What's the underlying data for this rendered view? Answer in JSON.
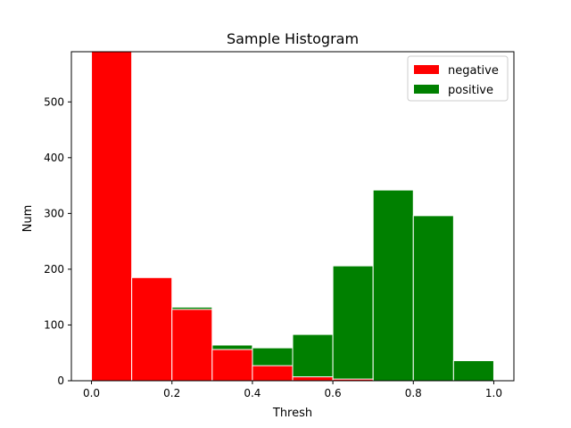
{
  "chart_data": {
    "type": "bar",
    "title": "Sample Histogram",
    "xlabel": "Thresh",
    "ylabel": "Num",
    "xlim": [
      -0.05,
      1.05
    ],
    "ylim": [
      0,
      590
    ],
    "xticks": [
      "0.0",
      "0.2",
      "0.4",
      "0.6",
      "0.8",
      "1.0"
    ],
    "yticks": [
      "0",
      "100",
      "200",
      "300",
      "400",
      "500"
    ],
    "grid": false,
    "legend_position": "top-right",
    "stacking": "overlay",
    "bin_edges": [
      0.0,
      0.1,
      0.2,
      0.3,
      0.4,
      0.5,
      0.6,
      0.7,
      0.8,
      0.9,
      1.0
    ],
    "series": [
      {
        "name": "positive",
        "color": "#008000",
        "values": [
          0,
          0,
          132,
          64,
          59,
          83,
          206,
          342,
          296,
          36
        ]
      },
      {
        "name": "negative",
        "color": "#ff0000",
        "values": [
          590,
          185,
          128,
          56,
          27,
          7,
          3,
          0,
          0,
          0
        ]
      }
    ]
  }
}
